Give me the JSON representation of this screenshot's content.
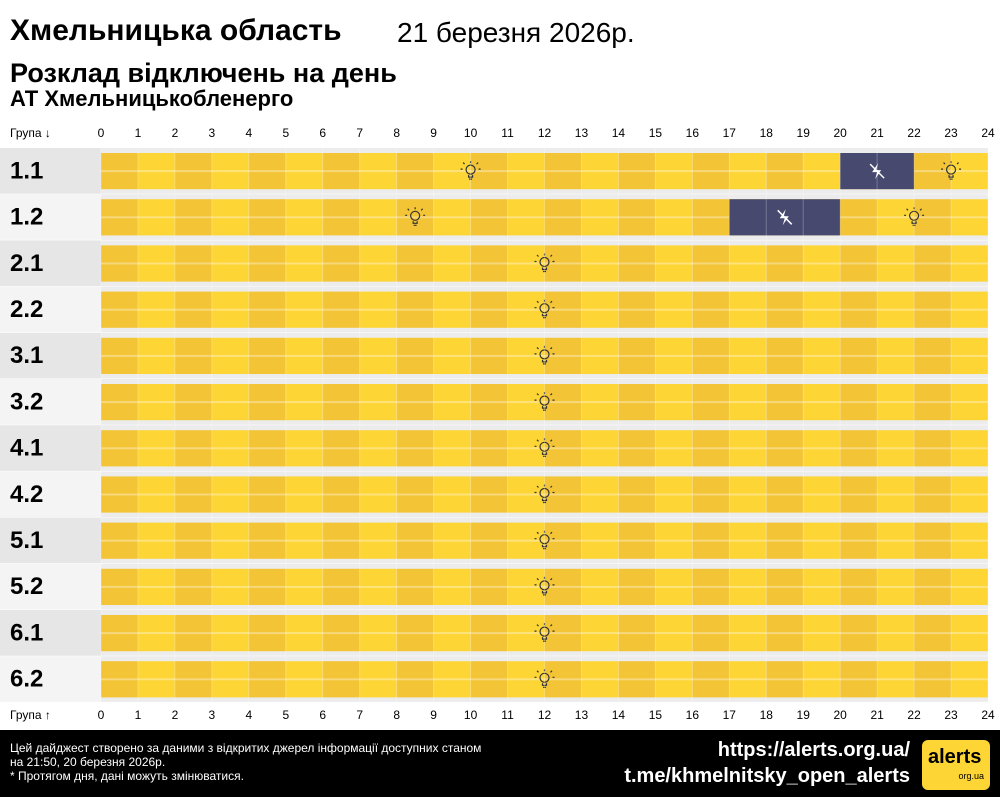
{
  "chart_data": {
    "type": "schedule",
    "title": "Хмельницька область",
    "date": "21 березня 2026р.",
    "subtitle": "Розклад відключень на день",
    "organization": "АТ Хмельницькобленерго",
    "axis_label_top": "Група ↓",
    "axis_label_bottom": "Група ↑",
    "xlim": [
      0,
      24
    ],
    "xticks": [
      0,
      1,
      2,
      3,
      4,
      5,
      6,
      7,
      8,
      9,
      10,
      11,
      12,
      13,
      14,
      15,
      16,
      17,
      18,
      19,
      20,
      21,
      22,
      23,
      24
    ],
    "on_color": "#fdd535",
    "on_color_alt": "#f3c435",
    "off_color": "#474a6e",
    "series": [
      {
        "name": "1.1",
        "outages": [
          [
            20,
            22
          ]
        ]
      },
      {
        "name": "1.2",
        "outages": [
          [
            17,
            20
          ]
        ]
      },
      {
        "name": "2.1",
        "outages": []
      },
      {
        "name": "2.2",
        "outages": []
      },
      {
        "name": "3.1",
        "outages": []
      },
      {
        "name": "3.2",
        "outages": []
      },
      {
        "name": "4.1",
        "outages": []
      },
      {
        "name": "4.2",
        "outages": []
      },
      {
        "name": "5.1",
        "outages": []
      },
      {
        "name": "5.2",
        "outages": []
      },
      {
        "name": "6.1",
        "outages": []
      },
      {
        "name": "6.2",
        "outages": []
      }
    ]
  },
  "footer": {
    "note": "Цей дайджест створено за даними з відкритих джерел інформації доступних станом на 21:50, 20 березня 2026р.",
    "disclaimer": "* Протягом дня, дані можуть змінюватися.",
    "site": "https://alerts.org.ua/",
    "channel": "t.me/khmelnitsky_open_alerts",
    "logo": "alerts",
    "logo_domain": "org.ua"
  }
}
